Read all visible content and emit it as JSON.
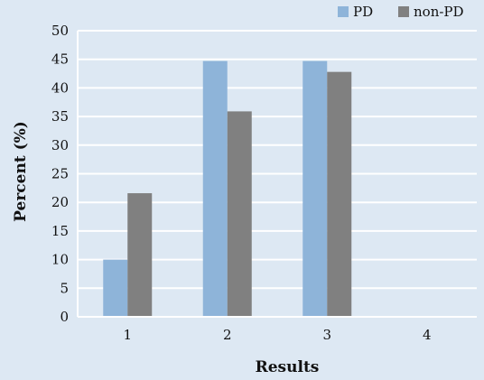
{
  "chart_data": {
    "type": "bar",
    "categories": [
      "1",
      "2",
      "3",
      "4"
    ],
    "series": [
      {
        "name": "PD",
        "values": [
          10,
          44.7,
          44.7,
          0
        ],
        "color": "#8eb4d9"
      },
      {
        "name": "non-PD",
        "values": [
          21.6,
          35.9,
          42.8,
          0
        ],
        "color": "#808080"
      }
    ],
    "title": "",
    "xlabel": "Results",
    "ylabel": "Percent (%)",
    "ylim": [
      0,
      50
    ],
    "yticks": [
      0,
      5,
      10,
      15,
      20,
      25,
      30,
      35,
      40,
      45,
      50
    ],
    "grid": true,
    "legend_position": "top-right",
    "background": "#dde8f3",
    "gridline_color": "#ffffff"
  }
}
